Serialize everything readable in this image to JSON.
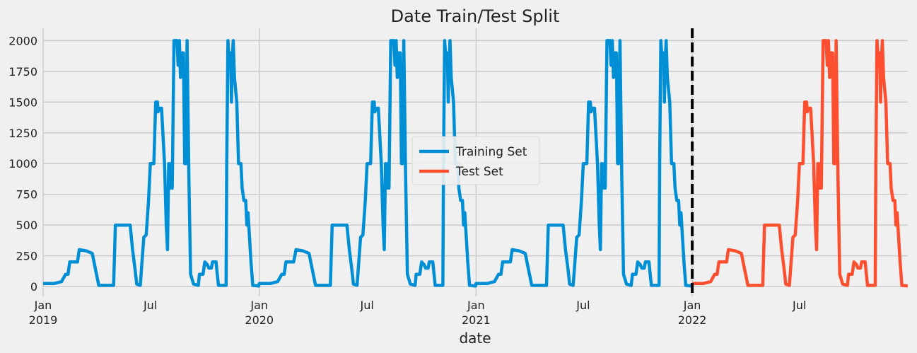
{
  "chart_data": {
    "type": "line",
    "title": "Date Train/Test Split",
    "xlabel": "date",
    "ylabel": "",
    "ylim": [
      -80,
      2100
    ],
    "xlim": [
      "2019-01-01",
      "2022-12-31"
    ],
    "y_ticks": [
      0,
      250,
      500,
      750,
      1000,
      1250,
      1500,
      1750,
      2000
    ],
    "y_tick_labels": [
      "0",
      "250",
      "500",
      "750",
      "1000",
      "1250",
      "1500",
      "1750",
      "2000"
    ],
    "x_ticks": [
      {
        "date": "2019-01-01",
        "label": "Jan",
        "sublabel": "2019"
      },
      {
        "date": "2019-07-01",
        "label": "Jul",
        "sublabel": ""
      },
      {
        "date": "2020-01-01",
        "label": "Jan",
        "sublabel": "2020"
      },
      {
        "date": "2020-07-01",
        "label": "Jul",
        "sublabel": ""
      },
      {
        "date": "2021-01-01",
        "label": "Jan",
        "sublabel": "2021"
      },
      {
        "date": "2021-07-01",
        "label": "Jul",
        "sublabel": ""
      },
      {
        "date": "2022-01-01",
        "label": "Jan",
        "sublabel": "2022"
      },
      {
        "date": "2022-07-01",
        "label": "Jul",
        "sublabel": ""
      }
    ],
    "grid": true,
    "legend_position": "center",
    "split_date": "2022-01-01",
    "yearly_profile": [
      [
        "01-01",
        25
      ],
      [
        "01-20",
        25
      ],
      [
        "02-01",
        40
      ],
      [
        "02-08",
        100
      ],
      [
        "02-12",
        100
      ],
      [
        "02-15",
        200
      ],
      [
        "02-28",
        200
      ],
      [
        "03-03",
        300
      ],
      [
        "03-15",
        290
      ],
      [
        "03-25",
        270
      ],
      [
        "03-30",
        150
      ],
      [
        "04-05",
        10
      ],
      [
        "04-25",
        10
      ],
      [
        "04-30",
        10
      ],
      [
        "05-03",
        500
      ],
      [
        "05-28",
        500
      ],
      [
        "06-01",
        300
      ],
      [
        "06-05",
        150
      ],
      [
        "06-08",
        20
      ],
      [
        "06-14",
        10
      ],
      [
        "06-20",
        400
      ],
      [
        "06-24",
        420
      ],
      [
        "06-28",
        700
      ],
      [
        "07-01",
        1000
      ],
      [
        "07-07",
        1000
      ],
      [
        "07-10",
        1500
      ],
      [
        "07-13",
        1500
      ],
      [
        "07-14",
        1420
      ],
      [
        "07-17",
        1450
      ],
      [
        "07-20",
        1450
      ],
      [
        "07-25",
        1000
      ],
      [
        "07-28",
        500
      ],
      [
        "07-30",
        300
      ],
      [
        "08-01",
        1000
      ],
      [
        "08-03",
        800
      ],
      [
        "08-05",
        1000
      ],
      [
        "08-07",
        800
      ],
      [
        "08-10",
        2000
      ],
      [
        "08-15",
        2000
      ],
      [
        "08-17",
        1800
      ],
      [
        "08-19",
        2000
      ],
      [
        "08-21",
        1700
      ],
      [
        "08-24",
        1900
      ],
      [
        "08-26",
        1900
      ],
      [
        "08-28",
        1000
      ],
      [
        "08-30",
        1000
      ],
      [
        "09-01",
        2000
      ],
      [
        "09-04",
        900
      ],
      [
        "09-07",
        100
      ],
      [
        "09-12",
        20
      ],
      [
        "09-20",
        10
      ],
      [
        "09-22",
        100
      ],
      [
        "09-28",
        100
      ],
      [
        "10-01",
        200
      ],
      [
        "10-05",
        180
      ],
      [
        "10-08",
        150
      ],
      [
        "10-12",
        150
      ],
      [
        "10-14",
        200
      ],
      [
        "10-20",
        200
      ],
      [
        "10-22",
        100
      ],
      [
        "10-24",
        10
      ],
      [
        "11-06",
        10
      ],
      [
        "11-07",
        1000
      ],
      [
        "11-09",
        2000
      ],
      [
        "11-11",
        1850
      ],
      [
        "11-13",
        1900
      ],
      [
        "11-14",
        1800
      ],
      [
        "11-15",
        1500
      ],
      [
        "11-16",
        1800
      ],
      [
        "11-18",
        2000
      ],
      [
        "11-20",
        1700
      ],
      [
        "11-24",
        1500
      ],
      [
        "11-27",
        1000
      ],
      [
        "12-01",
        1000
      ],
      [
        "12-03",
        800
      ],
      [
        "12-06",
        700
      ],
      [
        "12-09",
        700
      ],
      [
        "12-11",
        500
      ],
      [
        "12-13",
        600
      ],
      [
        "12-18",
        200
      ],
      [
        "12-21",
        10
      ],
      [
        "12-31",
        5
      ]
    ],
    "series": [
      {
        "name": "Training Set",
        "color": "#008fd5",
        "start": "2019-01-01",
        "end": "2021-12-31"
      },
      {
        "name": "Test Set",
        "color": "#fc4f30",
        "start": "2022-01-01",
        "end": "2022-12-31"
      }
    ]
  }
}
